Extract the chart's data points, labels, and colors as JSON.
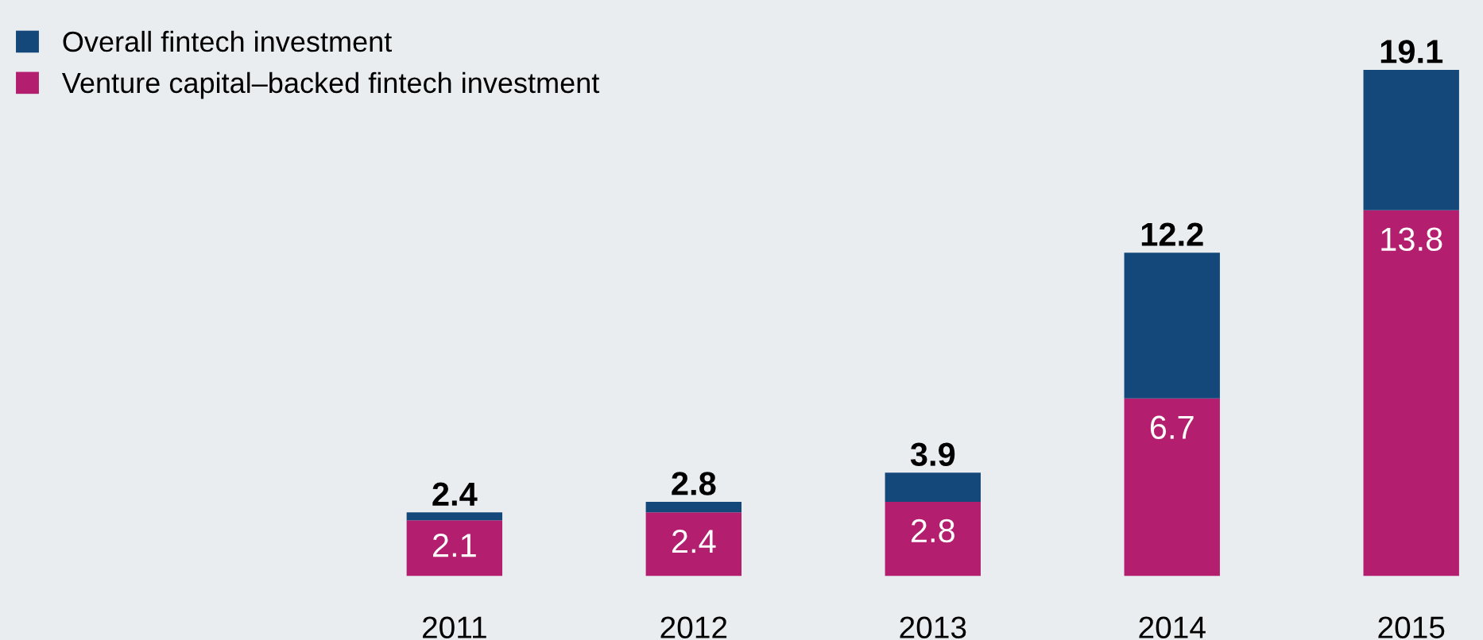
{
  "chart_data": {
    "type": "bar",
    "stacked": true,
    "categories": [
      "2011",
      "2012",
      "2013",
      "2014",
      "2015"
    ],
    "series": [
      {
        "name": "Venture capital–backed fintech investment",
        "color": "#b31e6e",
        "values": [
          2.1,
          2.4,
          2.8,
          6.7,
          13.8
        ],
        "value_labels": [
          "2.1",
          "2.4",
          "2.8",
          "6.7",
          "13.8"
        ]
      },
      {
        "name": "Overall fintech investment",
        "color": "#14477a",
        "values": [
          0.3,
          0.4,
          1.1,
          5.5,
          5.3
        ]
      }
    ],
    "totals": [
      "2.4",
      "2.8",
      "3.9",
      "12.2",
      "19.1"
    ],
    "legend": "top left",
    "grid": false,
    "tick_labels": "x"
  }
}
